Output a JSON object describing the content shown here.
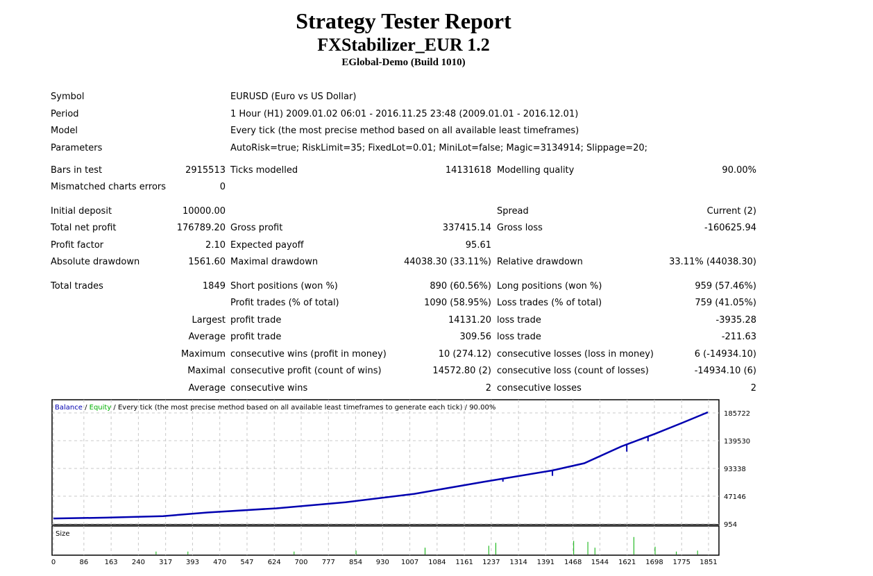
{
  "header": {
    "title": "Strategy Tester Report",
    "expert": "FXStabilizer_EUR 1.2",
    "server": "EGlobal-Demo (Build 1010)"
  },
  "info": [
    {
      "label": "Symbol",
      "value": "EURUSD (Euro vs US Dollar)"
    },
    {
      "label": "Period",
      "value": "1 Hour (H1) 2009.01.02 06:01 - 2016.11.25 23:48 (2009.01.01 - 2016.12.01)"
    },
    {
      "label": "Model",
      "value": "Every tick (the most precise method based on all available least timeframes)"
    },
    {
      "label": "Parameters",
      "value": "AutoRisk=true; RiskLimit=35; FixedLot=0.01; MiniLot=false; Magic=3134914; Slippage=20;"
    }
  ],
  "rows": [
    [
      "Bars in test",
      "2915513",
      "Ticks modelled",
      "14131618",
      "Modelling quality",
      "90.00%"
    ],
    [
      "Mismatched charts errors",
      "0",
      "",
      "",
      "",
      ""
    ],
    [
      "Initial deposit",
      "10000.00",
      "",
      "",
      "Spread",
      "Current (2)"
    ],
    [
      "Total net profit",
      "176789.20",
      "Gross profit",
      "337415.14",
      "Gross loss",
      "-160625.94"
    ],
    [
      "Profit factor",
      "2.10",
      "Expected payoff",
      "95.61",
      "",
      ""
    ],
    [
      "Absolute drawdown",
      "1561.60",
      "Maximal drawdown",
      "44038.30 (33.11%)",
      "Relative drawdown",
      "33.11% (44038.30)"
    ],
    [
      "Total trades",
      "1849",
      "Short positions (won %)",
      "890 (60.56%)",
      "Long positions (won %)",
      "959 (57.46%)"
    ],
    [
      "",
      "",
      "Profit trades (% of total)",
      "1090 (58.95%)",
      "Loss trades (% of total)",
      "759 (41.05%)"
    ],
    [
      "",
      "Largest",
      "profit trade",
      "14131.20",
      "loss trade",
      "-3935.28"
    ],
    [
      "",
      "Average",
      "profit trade",
      "309.56",
      "loss trade",
      "-211.63"
    ],
    [
      "",
      "Maximum",
      "consecutive wins (profit in money)",
      "10 (274.12)",
      "consecutive losses (loss in money)",
      "6 (-14934.10)"
    ],
    [
      "",
      "Maximal",
      "consecutive profit (count of wins)",
      "14572.80 (2)",
      "consecutive loss (count of losses)",
      "-14934.10 (6)"
    ],
    [
      "",
      "Average",
      "consecutive wins",
      "2",
      "consecutive losses",
      "2"
    ]
  ],
  "chart_data": {
    "type": "line",
    "legend": {
      "balance": "Balance",
      "equity": "Equity",
      "sep": " / ",
      "rest": " / Every tick (the most precise method based on all available least timeframes to generate each tick) / 90.00%"
    },
    "colors": {
      "balance": "#0000b0",
      "equity": "#00b000"
    },
    "size_label": "Size",
    "yticks": [
      185722,
      139530,
      93338,
      47146,
      954
    ],
    "ylim": [
      954,
      185722
    ],
    "xticks": [
      0,
      86,
      163,
      240,
      317,
      393,
      470,
      547,
      624,
      700,
      777,
      854,
      930,
      1007,
      1084,
      1161,
      1237,
      1314,
      1391,
      1468,
      1544,
      1621,
      1698,
      1775,
      1851
    ],
    "xlim": [
      0,
      1851
    ],
    "grid": true,
    "balance": [
      [
        0,
        10000
      ],
      [
        150,
        11500
      ],
      [
        310,
        14000
      ],
      [
        435,
        20000
      ],
      [
        630,
        27000
      ],
      [
        825,
        37000
      ],
      [
        1020,
        51000
      ],
      [
        1215,
        71000
      ],
      [
        1410,
        90000
      ],
      [
        1500,
        102000
      ],
      [
        1605,
        130000
      ],
      [
        1700,
        151000
      ],
      [
        1780,
        170000
      ],
      [
        1849,
        186789
      ]
    ],
    "dips": [
      [
        1270,
        -5000
      ],
      [
        1410,
        -9000
      ],
      [
        1620,
        -12000
      ],
      [
        1680,
        -8000
      ]
    ],
    "size_spikes": [
      [
        290,
        0.15
      ],
      [
        380,
        0.15
      ],
      [
        680,
        0.15
      ],
      [
        855,
        0.2
      ],
      [
        1050,
        0.35
      ],
      [
        1230,
        0.45
      ],
      [
        1250,
        0.6
      ],
      [
        1470,
        0.7
      ],
      [
        1510,
        0.65
      ],
      [
        1530,
        0.35
      ],
      [
        1640,
        0.9
      ],
      [
        1700,
        0.4
      ],
      [
        1760,
        0.15
      ],
      [
        1820,
        0.2
      ]
    ]
  }
}
